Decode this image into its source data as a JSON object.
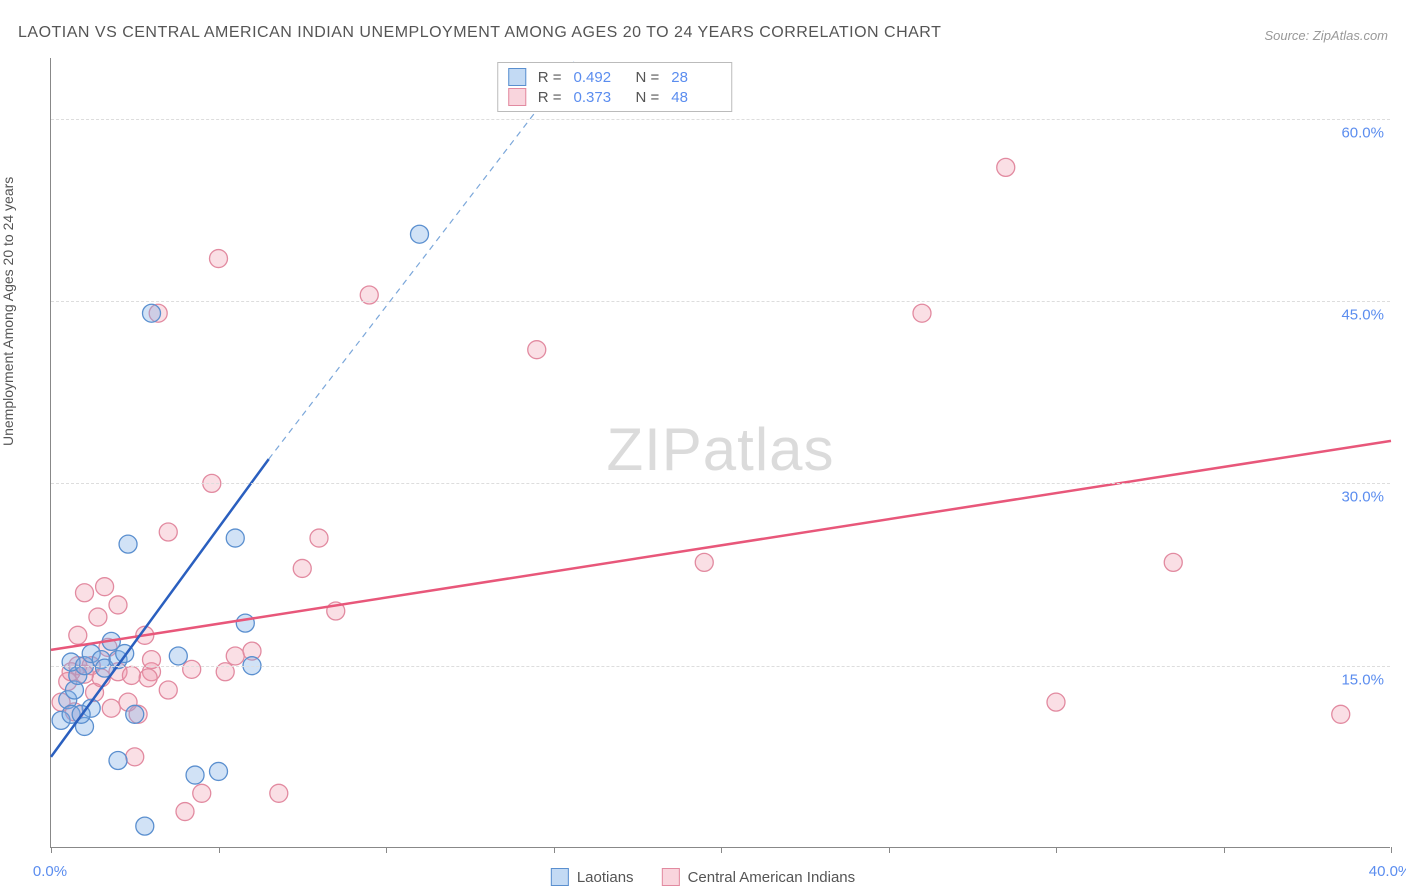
{
  "title": "LAOTIAN VS CENTRAL AMERICAN INDIAN UNEMPLOYMENT AMONG AGES 20 TO 24 YEARS CORRELATION CHART",
  "source": "Source: ZipAtlas.com",
  "y_axis_label": "Unemployment Among Ages 20 to 24 years",
  "watermark_a": "ZIP",
  "watermark_b": "atlas",
  "chart": {
    "type": "scatter",
    "xlim": [
      0,
      40
    ],
    "ylim": [
      0,
      65
    ],
    "x_ticks": [
      0,
      5,
      10,
      15,
      20,
      25,
      30,
      35,
      40
    ],
    "x_tick_labels": {
      "0": "0.0%",
      "40": "40.0%"
    },
    "y_gridlines": [
      15,
      30,
      45,
      60
    ],
    "y_tick_labels": {
      "15": "15.0%",
      "30": "30.0%",
      "45": "45.0%",
      "60": "60.0%"
    },
    "marker_radius": 9,
    "background_color": "#ffffff",
    "grid_color": "#dddddd",
    "axis_color": "#888888",
    "tick_label_color": "#5b8def",
    "series": {
      "laotians": {
        "label": "Laotians",
        "color_fill": "rgba(122,172,230,0.35)",
        "color_stroke": "#5a8fcf",
        "trend_color": "#2a5fbf",
        "R": "0.492",
        "N": "28",
        "trend_solid": {
          "x1": 0,
          "y1": 7.5,
          "x2": 6.5,
          "y2": 32
        },
        "trend_dash": {
          "x1": 6.5,
          "y1": 32,
          "x2": 15.7,
          "y2": 65
        },
        "points": [
          [
            0.3,
            10.5
          ],
          [
            0.5,
            12.2
          ],
          [
            0.6,
            11.0
          ],
          [
            0.7,
            13.0
          ],
          [
            0.8,
            14.2
          ],
          [
            0.6,
            15.3
          ],
          [
            1.0,
            10.0
          ],
          [
            1.0,
            15.0
          ],
          [
            1.2,
            16.0
          ],
          [
            1.2,
            11.5
          ],
          [
            0.9,
            11.0
          ],
          [
            1.5,
            15.5
          ],
          [
            1.6,
            14.8
          ],
          [
            1.8,
            17.0
          ],
          [
            2.0,
            7.2
          ],
          [
            2.0,
            15.5
          ],
          [
            2.2,
            16.0
          ],
          [
            2.3,
            25.0
          ],
          [
            2.5,
            11.0
          ],
          [
            2.8,
            1.8
          ],
          [
            3.0,
            44.0
          ],
          [
            3.8,
            15.8
          ],
          [
            4.3,
            6.0
          ],
          [
            5.0,
            6.3
          ],
          [
            5.5,
            25.5
          ],
          [
            5.8,
            18.5
          ],
          [
            6.0,
            15.0
          ],
          [
            11.0,
            50.5
          ]
        ]
      },
      "cai": {
        "label": "Central American Indians",
        "color_fill": "rgba(240,150,170,0.3)",
        "color_stroke": "#e28aa0",
        "trend_color": "#e8577a",
        "R": "0.373",
        "N": "48",
        "trend_solid": {
          "x1": 0,
          "y1": 16.3,
          "x2": 40,
          "y2": 33.5
        },
        "points": [
          [
            0.3,
            12.0
          ],
          [
            0.5,
            13.7
          ],
          [
            0.6,
            14.5
          ],
          [
            0.7,
            11.2
          ],
          [
            0.8,
            15.0
          ],
          [
            0.8,
            17.5
          ],
          [
            1.0,
            14.3
          ],
          [
            1.0,
            21.0
          ],
          [
            1.2,
            15.0
          ],
          [
            1.3,
            12.8
          ],
          [
            1.4,
            19.0
          ],
          [
            1.5,
            14.0
          ],
          [
            1.6,
            21.5
          ],
          [
            1.7,
            16.5
          ],
          [
            1.8,
            11.5
          ],
          [
            2.0,
            14.5
          ],
          [
            2.0,
            20.0
          ],
          [
            2.3,
            12.0
          ],
          [
            2.4,
            14.2
          ],
          [
            2.5,
            7.5
          ],
          [
            2.6,
            11.0
          ],
          [
            2.8,
            17.5
          ],
          [
            3.0,
            14.5
          ],
          [
            3.0,
            15.5
          ],
          [
            3.2,
            44.0
          ],
          [
            3.5,
            13.0
          ],
          [
            3.5,
            26.0
          ],
          [
            4.0,
            3.0
          ],
          [
            4.2,
            14.7
          ],
          [
            4.5,
            4.5
          ],
          [
            4.8,
            30.0
          ],
          [
            5.0,
            48.5
          ],
          [
            5.2,
            14.5
          ],
          [
            5.5,
            15.8
          ],
          [
            6.0,
            16.2
          ],
          [
            6.8,
            4.5
          ],
          [
            7.5,
            23.0
          ],
          [
            8.0,
            25.5
          ],
          [
            8.5,
            19.5
          ],
          [
            9.5,
            45.5
          ],
          [
            14.5,
            41.0
          ],
          [
            19.5,
            23.5
          ],
          [
            26.0,
            44.0
          ],
          [
            28.5,
            56.0
          ],
          [
            30.0,
            12.0
          ],
          [
            33.5,
            23.5
          ],
          [
            38.5,
            11.0
          ],
          [
            2.9,
            14.0
          ]
        ]
      }
    }
  },
  "r_legend_rows": [
    {
      "swatch": "blue",
      "r_label": "R =",
      "r_val": "0.492",
      "n_label": "N =",
      "n_val": "28"
    },
    {
      "swatch": "pink",
      "r_label": "R =",
      "r_val": "0.373",
      "n_label": "N =",
      "n_val": "48"
    }
  ],
  "bottom_legend": [
    {
      "swatch": "blue",
      "label": "Laotians"
    },
    {
      "swatch": "pink",
      "label": "Central American Indians"
    }
  ]
}
